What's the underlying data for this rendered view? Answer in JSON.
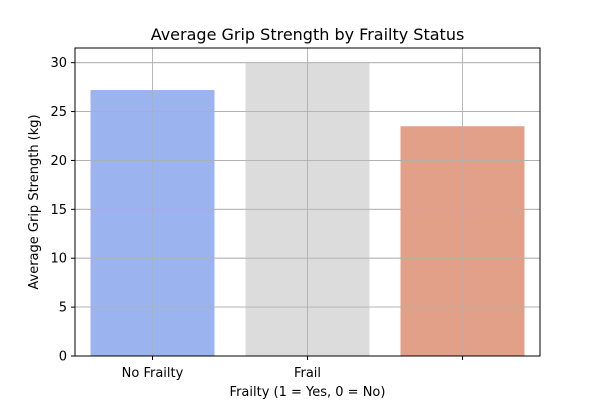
{
  "chart_data": {
    "type": "bar",
    "title": "Average Grip Strength by Frailty Status",
    "xlabel": "Frailty (1 = Yes, 0 = No)",
    "ylabel": "Average Grip Strength (kg)",
    "categories": [
      "No Frailty",
      "Frail",
      ""
    ],
    "values": [
      27.2,
      30.0,
      23.5
    ],
    "colors": [
      "#9bb4f0",
      "#dcdcdc",
      "#e3a088"
    ],
    "ylim": [
      0,
      31.5
    ],
    "yticks": [
      0,
      5,
      10,
      15,
      20,
      25,
      30
    ],
    "grid": true,
    "legend": "none"
  }
}
